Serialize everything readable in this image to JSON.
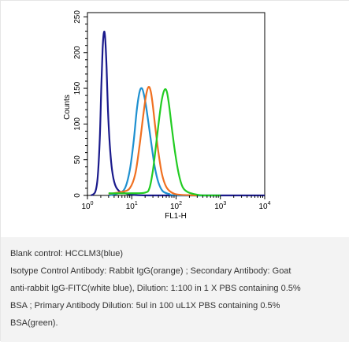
{
  "chart_data": {
    "type": "line",
    "title": "",
    "xlabel": "FL1-H",
    "ylabel": "Counts",
    "x_scale": "log",
    "xlim": [
      1,
      10000
    ],
    "ylim": [
      0,
      256
    ],
    "y_ticks": [
      "0",
      "50",
      "100",
      "150",
      "200",
      "250"
    ],
    "x_tick_bases": [
      "10",
      "10",
      "10",
      "10",
      "10"
    ],
    "x_tick_exps": [
      "0",
      "1",
      "2",
      "3",
      "4"
    ],
    "x_tick_values": [
      1,
      10,
      100,
      1000,
      10000
    ],
    "legend": "none",
    "grid": false,
    "series": [
      {
        "color": "#1a1a8c",
        "x": [
          1.2,
          1.5,
          1.7,
          1.9,
          2.05,
          2.2,
          2.35,
          2.5,
          2.7,
          2.9,
          3.2,
          3.6,
          4.2,
          5.2,
          7,
          10,
          20,
          100,
          1000,
          10000
        ],
        "y": [
          0,
          5,
          25,
          80,
          150,
          205,
          228,
          222,
          180,
          120,
          70,
          35,
          15,
          6,
          3,
          1,
          0,
          0,
          0,
          0
        ]
      },
      {
        "color": "#1e90d0",
        "x": [
          3,
          5,
          7,
          9,
          11,
          13,
          15,
          17,
          19,
          21,
          24,
          28,
          33,
          40,
          50,
          70,
          100,
          1000
        ],
        "y": [
          0,
          3,
          10,
          35,
          75,
          120,
          145,
          150,
          140,
          125,
          100,
          70,
          40,
          18,
          6,
          2,
          0,
          0
        ]
      },
      {
        "color": "#f07020",
        "x": [
          3,
          6,
          9,
          12,
          15,
          18,
          21,
          24,
          27,
          30,
          34,
          40,
          48,
          60,
          80,
          120,
          300
        ],
        "y": [
          2,
          5,
          10,
          30,
          70,
          110,
          140,
          152,
          145,
          125,
          95,
          60,
          30,
          12,
          4,
          1,
          0
        ]
      },
      {
        "color": "#22cc22",
        "x": [
          3,
          10,
          20,
          25,
          30,
          36,
          42,
          48,
          55,
          62,
          70,
          80,
          95,
          115,
          140,
          180,
          250,
          400,
          1000
        ],
        "y": [
          3,
          3,
          4,
          10,
          35,
          75,
          110,
          135,
          148,
          145,
          125,
          95,
          60,
          30,
          12,
          5,
          2,
          0,
          0
        ]
      }
    ]
  },
  "caption": {
    "lines": [
      "Blank control: HCCLM3(blue)",
      "Isotype Control Antibody: Rabbit IgG(orange) ; Secondary Antibody: Goat",
      "anti-rabbit IgG-FITC(white blue), Dilution: 1:100 in 1 X PBS containing 0.5%",
      "BSA ; Primary Antibody Dilution: 5ul in 100 uL1X PBS containing 0.5%",
      "BSA(green)."
    ]
  }
}
